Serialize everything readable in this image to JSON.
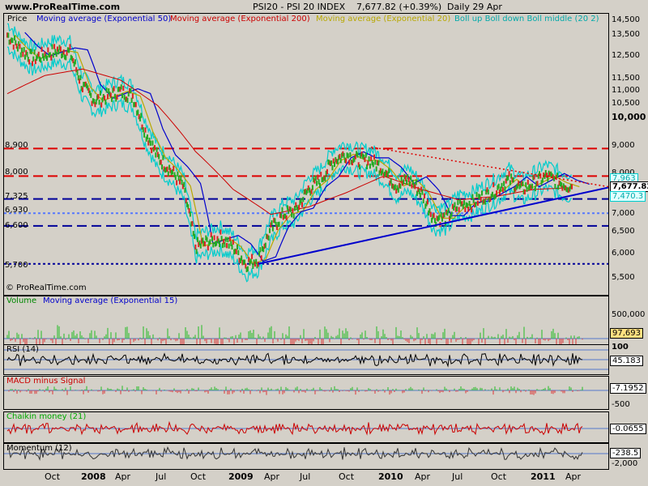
{
  "header": {
    "site": "www.ProRealTime.com",
    "title": "PSI20 - PSI 20 INDEX",
    "last": "7,677.82 (+0.39%)",
    "freq": "Daily  29 Apr"
  },
  "legend": {
    "price": "Price",
    "ema50": "Moving average (Exponential 50)",
    "ema200": "Moving average (Exponential 200)",
    "ema20": "Moving average (Exponential 20)",
    "boll": "Boll up Boll down Boll middle (20 2)",
    "copyright": "© ProRealTime.com"
  },
  "colors": {
    "ema50": "#0000cc",
    "ema200": "#cc0000",
    "ema20": "#b8a800",
    "boll": "#00cccc",
    "level_red": "#dd0000",
    "level_blue": "#000099",
    "trend": "#0000cc"
  },
  "levels": {
    "l8900": "8,900",
    "l8000": "8,000",
    "l7325": "7,325",
    "l6930": "6,930",
    "l6600": "6,600",
    "l5700": "5,700"
  },
  "price_ticks": [
    "14,500",
    "13,500",
    "12,500",
    "11,500",
    "11,000",
    "10,500",
    "10,000",
    "9,000",
    "8,000",
    "7,000",
    "6,500",
    "6,000",
    "5,500"
  ],
  "price_flags": {
    "boll_up": "7,963",
    "last": "7,677.82",
    "boll_down": "7,470.3"
  },
  "volume": {
    "title": "Volume",
    "ma": "Moving average (Exponential 15)",
    "tick": "500,000",
    "value": "97,693"
  },
  "rsi": {
    "title": "RSI (14)",
    "tick": "100",
    "value": "45.183"
  },
  "macd": {
    "title": "MACD minus Signal",
    "value": "-7.1952",
    "tick": "-500"
  },
  "chaikin": {
    "title": "Chaikin money (21)",
    "value": "-0.0655"
  },
  "momentum": {
    "title": "Momentum (12)",
    "value": "-238.5",
    "tick": "-2,000"
  },
  "x_labels": [
    {
      "t": "Oct",
      "b": false
    },
    {
      "t": "2008",
      "b": true
    },
    {
      "t": "Apr",
      "b": false
    },
    {
      "t": "Jul",
      "b": false
    },
    {
      "t": "Oct",
      "b": false
    },
    {
      "t": "2009",
      "b": true
    },
    {
      "t": "Apr",
      "b": false
    },
    {
      "t": "Jul",
      "b": false
    },
    {
      "t": "Oct",
      "b": false
    },
    {
      "t": "2010",
      "b": true
    },
    {
      "t": "Apr",
      "b": false
    },
    {
      "t": "Jul",
      "b": false
    },
    {
      "t": "Oct",
      "b": false
    },
    {
      "t": "2011",
      "b": true
    },
    {
      "t": "Apr",
      "b": false
    }
  ],
  "chart_data": {
    "type": "line",
    "title": "PSI20 - PSI 20 INDEX",
    "x_range": [
      "2007-07",
      "2011-04-29"
    ],
    "y_scale": "log",
    "ylim": [
      5300,
      14700
    ],
    "series": [
      {
        "name": "Price",
        "x": [
          "2007-07",
          "2007-08",
          "2007-09",
          "2007-10",
          "2007-11",
          "2007-12",
          "2008-01",
          "2008-02",
          "2008-03",
          "2008-04",
          "2008-05",
          "2008-06",
          "2008-07",
          "2008-08",
          "2008-09",
          "2008-10",
          "2008-11",
          "2008-12",
          "2009-01",
          "2009-02",
          "2009-03",
          "2009-04",
          "2009-05",
          "2009-06",
          "2009-07",
          "2009-08",
          "2009-09",
          "2009-10",
          "2009-11",
          "2009-12",
          "2010-01",
          "2010-02",
          "2010-03",
          "2010-04",
          "2010-05",
          "2010-06",
          "2010-07",
          "2010-08",
          "2010-09",
          "2010-10",
          "2010-11",
          "2010-12",
          "2011-01",
          "2011-02",
          "2011-03",
          "2011-04"
        ],
        "y": [
          13800,
          13100,
          12600,
          12800,
          13000,
          12900,
          11300,
          10700,
          10900,
          11100,
          10900,
          9500,
          8600,
          8200,
          7700,
          6100,
          6200,
          6300,
          6100,
          5700,
          5800,
          6500,
          6900,
          7000,
          7600,
          7900,
          8500,
          8700,
          8500,
          8500,
          8200,
          7700,
          7900,
          7500,
          6800,
          6800,
          7150,
          7200,
          7400,
          7600,
          7900,
          7600,
          7800,
          8000,
          7800,
          7678
        ]
      },
      {
        "name": "Moving average (Exponential 200)",
        "x": [
          "2007-07",
          "2007-10",
          "2008-01",
          "2008-04",
          "2008-07",
          "2008-10",
          "2009-01",
          "2009-04",
          "2009-07",
          "2009-10",
          "2010-01",
          "2010-04",
          "2010-07",
          "2010-10",
          "2011-01",
          "2011-04"
        ],
        "y": [
          11000,
          11800,
          12100,
          11600,
          10500,
          8800,
          7600,
          6900,
          7100,
          7500,
          8000,
          7600,
          7300,
          7400,
          7600,
          7650
        ]
      }
    ],
    "levels": [
      8900,
      8000,
      7325,
      6930,
      6600,
      5700
    ],
    "trend_lines": [
      {
        "from": [
          "2009-03",
          5700
        ],
        "to": [
          "2011-04-29",
          7500
        ],
        "style": "solid"
      },
      {
        "from": [
          "2009-12",
          8950
        ],
        "to": [
          "2011-04-29",
          7800
        ],
        "style": "dotted"
      }
    ],
    "last_value": 7677.82
  }
}
